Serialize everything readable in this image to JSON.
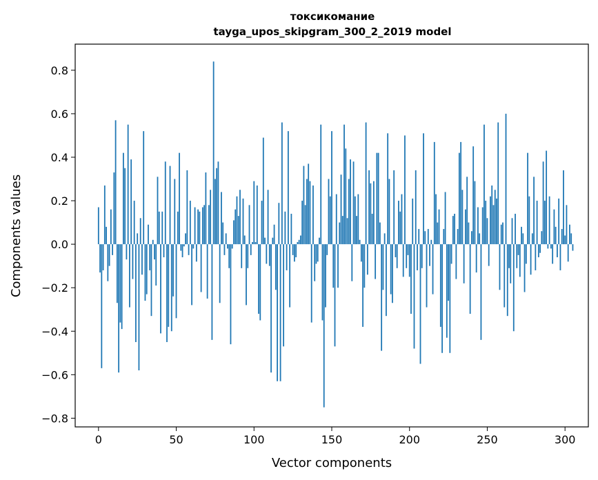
{
  "chart_data": {
    "type": "bar",
    "title": "токсикомание",
    "subtitle": "tayga_upos_skipgram_300_2_2019 model",
    "xlabel": "Vector components",
    "ylabel": "Components values",
    "xlim": [
      -15,
      315
    ],
    "ylim": [
      -0.84,
      0.92
    ],
    "xticks": [
      0,
      50,
      100,
      150,
      200,
      250,
      300
    ],
    "xtick_labels": [
      "0",
      "50",
      "100",
      "150",
      "200",
      "250",
      "300"
    ],
    "yticks": [
      -0.8,
      -0.6,
      -0.4,
      -0.2,
      0.0,
      0.2,
      0.4,
      0.6,
      0.8
    ],
    "ytick_labels": [
      "−0.8",
      "−0.6",
      "−0.4",
      "−0.2",
      "0.0",
      "0.2",
      "0.4",
      "0.6",
      "0.8"
    ],
    "bar_color": "#1f77b4",
    "grid": false,
    "values": [
      0.17,
      -0.13,
      -0.57,
      -0.12,
      0.27,
      0.08,
      -0.17,
      -0.1,
      0.16,
      -0.05,
      0.33,
      0.57,
      -0.27,
      -0.59,
      -0.36,
      -0.39,
      0.42,
      0.35,
      -0.07,
      0.55,
      -0.29,
      0.39,
      -0.16,
      0.2,
      -0.45,
      0.05,
      -0.58,
      0.12,
      -0.14,
      0.52,
      -0.26,
      -0.23,
      0.09,
      -0.12,
      -0.33,
      0.02,
      -0.07,
      -0.19,
      0.31,
      0.15,
      -0.41,
      0.15,
      -0.06,
      0.38,
      -0.45,
      -0.38,
      0.36,
      -0.4,
      -0.24,
      0.3,
      -0.34,
      0.15,
      0.42,
      -0.03,
      -0.06,
      -0.01,
      0.05,
      0.34,
      -0.05,
      0.2,
      -0.28,
      -0.02,
      0.17,
      -0.08,
      0.16,
      0.15,
      -0.22,
      0.17,
      0.18,
      0.33,
      -0.25,
      0.18,
      0.25,
      -0.44,
      0.84,
      0.3,
      0.35,
      0.38,
      -0.27,
      0.24,
      0.1,
      -0.05,
      0.05,
      -0.02,
      -0.11,
      -0.46,
      -0.02,
      0.11,
      0.16,
      0.22,
      0.13,
      0.25,
      -0.11,
      0.21,
      0.04,
      -0.28,
      -0.11,
      0.18,
      -0.05,
      0.01,
      0.29,
      0.01,
      0.27,
      -0.32,
      -0.35,
      0.2,
      0.49,
      0.03,
      -0.09,
      0.25,
      -0.1,
      -0.59,
      0.03,
      0.09,
      -0.21,
      -0.63,
      0.19,
      -0.63,
      0.56,
      -0.47,
      0.15,
      -0.12,
      0.52,
      -0.29,
      0.14,
      -0.05,
      -0.08,
      -0.06,
      0.01,
      0.02,
      0.04,
      0.2,
      0.36,
      0.18,
      0.3,
      0.37,
      0.29,
      -0.36,
      0.27,
      -0.17,
      -0.09,
      -0.08,
      0.03,
      0.55,
      -0.35,
      -0.75,
      -0.29,
      -0.05,
      0.3,
      0.22,
      0.52,
      -0.2,
      -0.47,
      0.23,
      -0.2,
      0.1,
      0.32,
      0.13,
      0.55,
      0.44,
      0.12,
      0.3,
      0.39,
      -0.17,
      0.38,
      0.22,
      0.13,
      0.23,
      0.02,
      -0.08,
      -0.38,
      -0.2,
      0.56,
      -0.14,
      0.34,
      0.28,
      0.14,
      0.29,
      -0.16,
      0.42,
      0.42,
      0.1,
      -0.49,
      -0.21,
      0.05,
      -0.33,
      0.51,
      0.3,
      -0.23,
      -0.27,
      0.34,
      -0.06,
      -0.11,
      0.2,
      0.15,
      0.23,
      -0.15,
      0.5,
      -0.11,
      -0.05,
      -0.15,
      -0.32,
      0.21,
      -0.48,
      0.34,
      -0.12,
      0.07,
      -0.55,
      -0.11,
      0.51,
      0.06,
      -0.29,
      0.07,
      -0.1,
      0.02,
      -0.23,
      0.47,
      0.23,
      0.1,
      0.16,
      -0.38,
      -0.5,
      0.07,
      0.24,
      -0.43,
      -0.26,
      -0.5,
      -0.09,
      0.13,
      0.14,
      -0.16,
      0.07,
      0.42,
      0.47,
      0.25,
      -0.18,
      0.16,
      0.31,
      0.1,
      -0.32,
      0.06,
      0.45,
      0.29,
      -0.13,
      0.17,
      0.05,
      -0.44,
      0.17,
      0.55,
      0.2,
      0.12,
      -0.1,
      0.22,
      0.27,
      0.18,
      0.25,
      0.21,
      0.56,
      -0.21,
      0.09,
      0.1,
      -0.29,
      0.6,
      -0.33,
      -0.11,
      -0.18,
      0.12,
      -0.4,
      0.14,
      -0.11,
      -0.05,
      -0.15,
      0.08,
      0.05,
      -0.22,
      -0.09,
      0.42,
      0.22,
      -0.14,
      0.05,
      0.31,
      -0.12,
      0.2,
      -0.06,
      -0.04,
      0.06,
      0.38,
      0.2,
      0.43,
      -0.02,
      0.22,
      -0.02,
      -0.09,
      0.16,
      0.08,
      -0.06,
      0.21,
      -0.12,
      0.07,
      0.34,
      0.04,
      0.18,
      -0.08,
      0.09,
      0.05,
      -0.03
    ]
  }
}
